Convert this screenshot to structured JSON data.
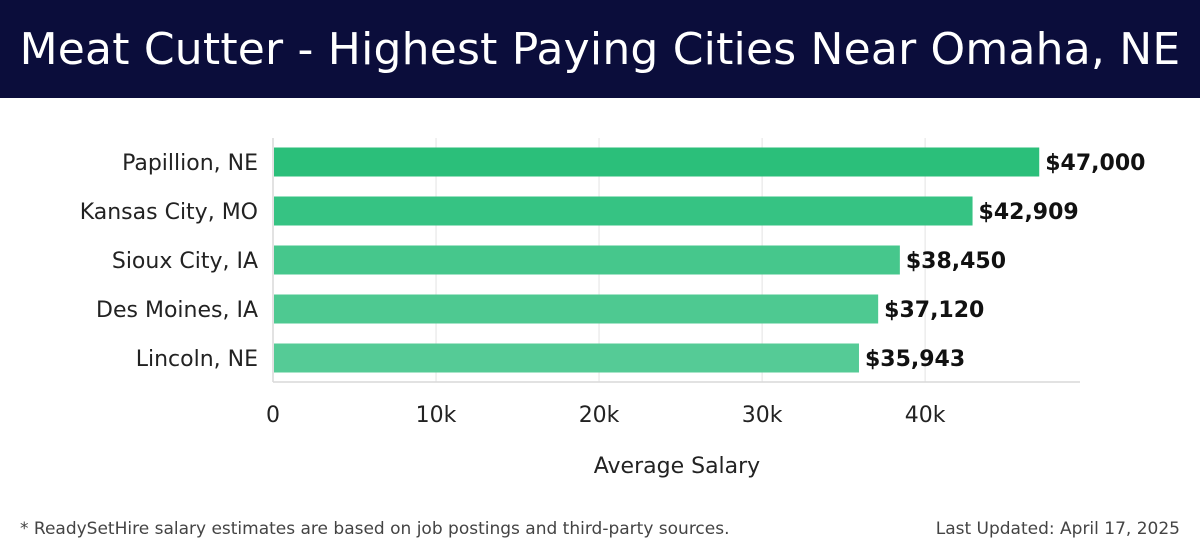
{
  "header": {
    "title": "Meat Cutter - Highest Paying Cities Near Omaha, NE"
  },
  "chart_data": {
    "type": "bar",
    "orientation": "horizontal",
    "title": "Meat Cutter - Highest Paying Cities Near Omaha, NE",
    "categories": [
      "Papillion, NE",
      "Kansas City, MO",
      "Sioux City, IA",
      "Des Moines, IA",
      "Lincoln, NE"
    ],
    "values": [
      47000,
      42909,
      38450,
      37120,
      35943
    ],
    "value_labels": [
      "$47,000",
      "$42,909",
      "$38,450",
      "$37,120",
      "$35,943"
    ],
    "xlabel": "Average Salary",
    "ylabel": "",
    "xlim": [
      0,
      49500
    ],
    "x_ticks": [
      0,
      10000,
      20000,
      30000,
      40000
    ],
    "x_tick_labels": [
      "0",
      "10k",
      "20k",
      "30k",
      "40k"
    ],
    "grid": true,
    "bar_colors": [
      "#2bbf7a",
      "#36c383",
      "#46c78c",
      "#4ec991",
      "#55cb96"
    ]
  },
  "footer": {
    "note": "* ReadySetHire salary estimates are based on job postings and third-party sources.",
    "updated": "Last Updated: April 17, 2025"
  }
}
